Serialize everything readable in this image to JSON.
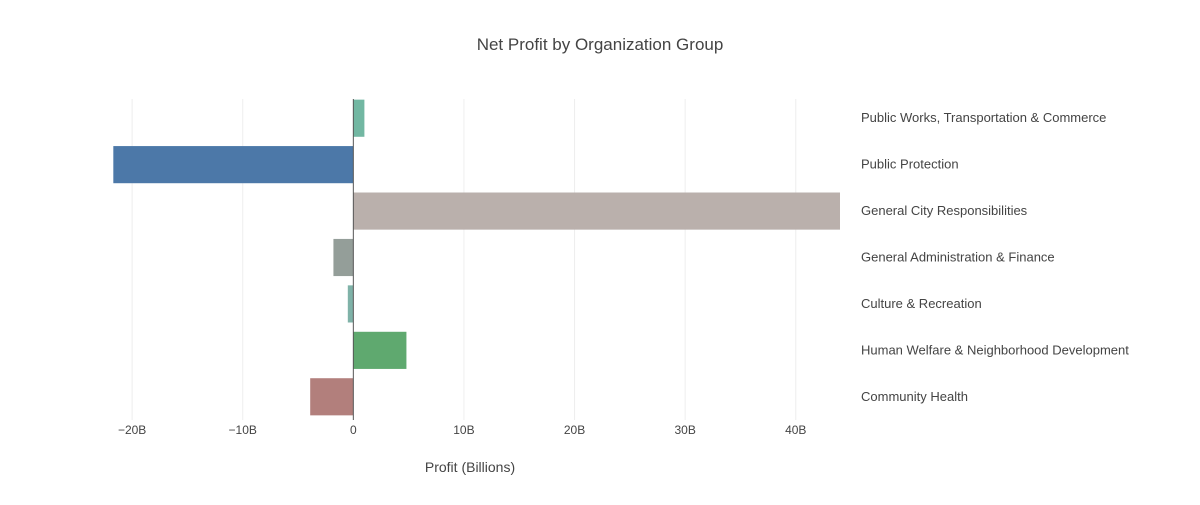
{
  "chart_data": {
    "type": "bar",
    "orientation": "horizontal",
    "title": "Net Profit by Organization Group",
    "xlabel": "Profit (Billions)",
    "ylabel": "",
    "xlim": [
      -22,
      44
    ],
    "x_ticks": [
      {
        "value": -20,
        "label": "−20B"
      },
      {
        "value": -10,
        "label": "−10B"
      },
      {
        "value": 0,
        "label": "0"
      },
      {
        "value": 10,
        "label": "10B"
      },
      {
        "value": 20,
        "label": "20B"
      },
      {
        "value": 30,
        "label": "30B"
      },
      {
        "value": 40,
        "label": "40B"
      }
    ],
    "grid": true,
    "category_labels_position": "right",
    "categories": [
      "Public Works, Transportation & Commerce",
      "Public Protection",
      "General City Responsibilities",
      "General Administration & Finance",
      "Culture & Recreation",
      "Human Welfare & Neighborhood Development",
      "Community Health"
    ],
    "values": [
      1.0,
      -21.7,
      44.0,
      -1.8,
      -0.5,
      4.8,
      -3.9
    ],
    "colors": [
      "#72b7a2",
      "#4c78a8",
      "#bab0ac",
      "#949e99",
      "#7fb2a8",
      "#5fa96f",
      "#b27f7c"
    ]
  }
}
